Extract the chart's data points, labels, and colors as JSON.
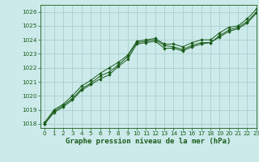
{
  "title": "Graphe pression niveau de la mer (hPa)",
  "background_color": "#cceaea",
  "grid_color": "#aacece",
  "line_color": "#1a5c1a",
  "marker_color": "#1a5c1a",
  "xlim": [
    -0.5,
    23
  ],
  "ylim": [
    1017.7,
    1026.5
  ],
  "yticks": [
    1018,
    1019,
    1020,
    1021,
    1022,
    1023,
    1024,
    1025,
    1026
  ],
  "xticks": [
    0,
    1,
    2,
    3,
    4,
    5,
    6,
    7,
    8,
    9,
    10,
    11,
    12,
    13,
    14,
    15,
    16,
    17,
    18,
    19,
    20,
    21,
    22,
    23
  ],
  "series": [
    [
      1018.1,
      1019.0,
      1019.4,
      1020.0,
      1020.7,
      1021.1,
      1021.6,
      1022.0,
      1022.4,
      1022.9,
      1023.9,
      1024.0,
      1024.1,
      1023.7,
      1023.7,
      1023.5,
      1023.8,
      1024.0,
      1024.0,
      1024.5,
      1024.9,
      1025.0,
      1025.5,
      1026.2
    ],
    [
      1018.0,
      1018.9,
      1019.3,
      1019.8,
      1020.5,
      1020.9,
      1021.4,
      1021.7,
      1022.2,
      1022.8,
      1023.8,
      1023.9,
      1024.0,
      1023.6,
      1023.5,
      1023.3,
      1023.6,
      1023.8,
      1023.8,
      1024.3,
      1024.7,
      1024.9,
      1025.3,
      1026.0
    ],
    [
      1018.0,
      1018.8,
      1019.2,
      1019.7,
      1020.4,
      1020.8,
      1021.2,
      1021.5,
      1022.1,
      1022.6,
      1023.7,
      1023.8,
      1023.9,
      1023.4,
      1023.4,
      1023.2,
      1023.5,
      1023.7,
      1023.8,
      1024.2,
      1024.6,
      1024.8,
      1025.2,
      1025.9
    ]
  ],
  "tick_fontsize": 5.2,
  "label_fontsize": 6.5,
  "label_fontweight": "bold"
}
